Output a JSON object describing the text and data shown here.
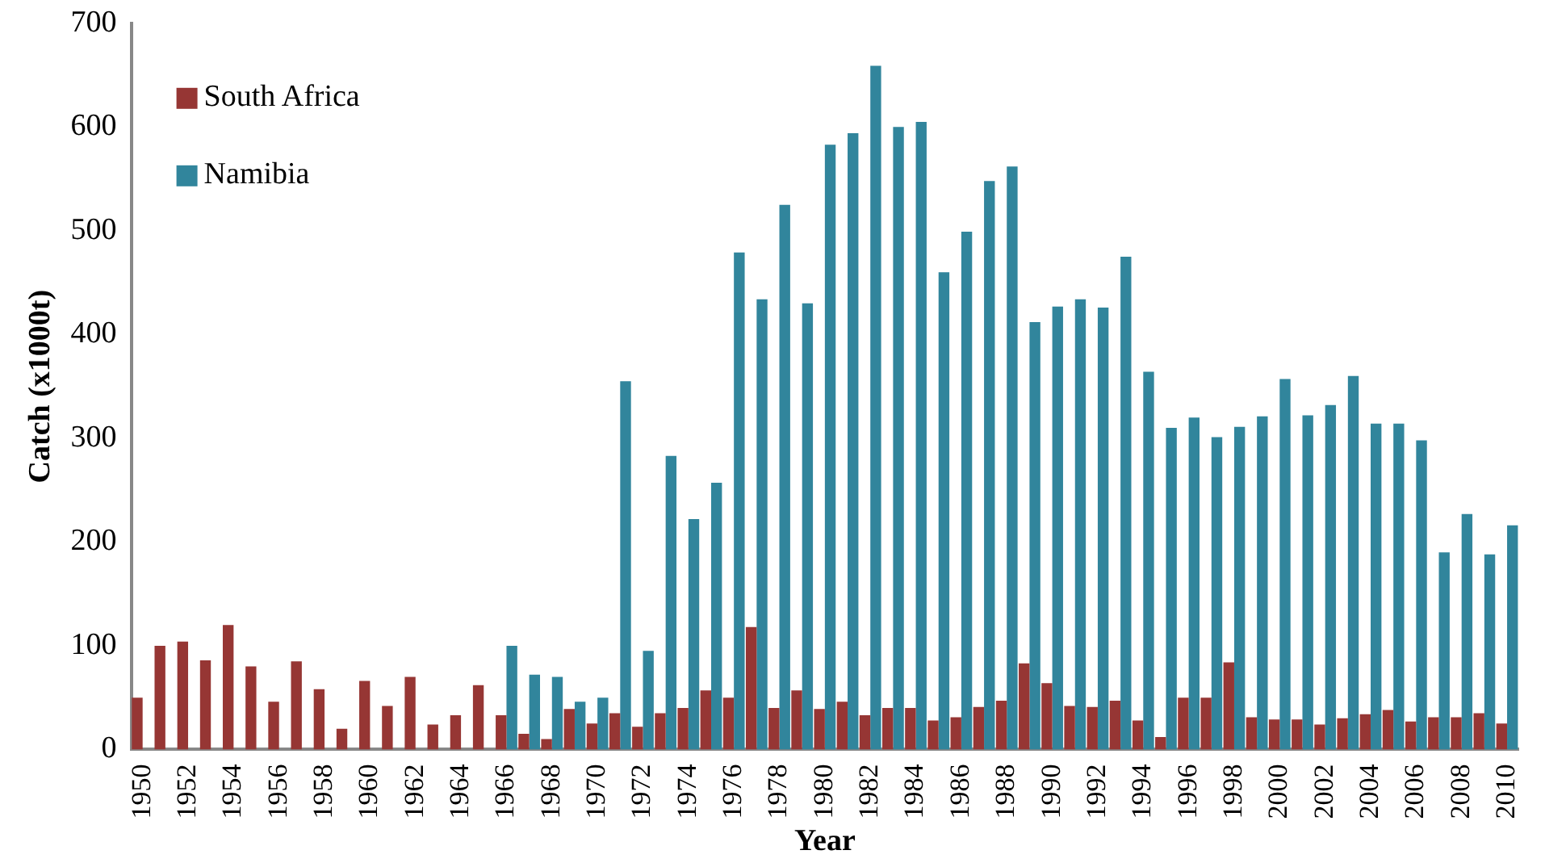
{
  "chart_data": {
    "type": "bar",
    "xlabel": "Year",
    "ylabel": "Catch (x1000t)",
    "categories": [
      "1950",
      null,
      "1952",
      null,
      "1954",
      null,
      "1956",
      null,
      "1958",
      null,
      "1960",
      null,
      "1962",
      null,
      "1964",
      null,
      "1966",
      null,
      "1968",
      null,
      "1970",
      null,
      "1972",
      null,
      "1974",
      null,
      "1976",
      null,
      "1978",
      null,
      "1980",
      null,
      "1982",
      null,
      "1984",
      null,
      "1986",
      null,
      "1988",
      null,
      "1990",
      null,
      "1992",
      null,
      "1994",
      null,
      "1996",
      null,
      "1998",
      null,
      "2000",
      null,
      "2002",
      null,
      "2004",
      null,
      "2006",
      null,
      "2008",
      null,
      "2010"
    ],
    "series": [
      {
        "name": "South Africa",
        "color": "#963634",
        "values": [
          50,
          100,
          104,
          86,
          120,
          80,
          46,
          85,
          58,
          20,
          66,
          42,
          70,
          24,
          33,
          62,
          33,
          15,
          10,
          39,
          25,
          35,
          22,
          35,
          40,
          57,
          50,
          118,
          40,
          57,
          39,
          46,
          33,
          40,
          40,
          28,
          31,
          41,
          47,
          83,
          64,
          42,
          41,
          47,
          28,
          12,
          50,
          50,
          84,
          31,
          29,
          29,
          24,
          30,
          34,
          38,
          27,
          31,
          31,
          35,
          25
        ]
      },
      {
        "name": "Namibia",
        "color": "#31859c",
        "values": [
          null,
          null,
          null,
          null,
          null,
          null,
          null,
          null,
          null,
          null,
          null,
          null,
          null,
          null,
          null,
          null,
          100,
          72,
          70,
          46,
          50,
          355,
          95,
          283,
          222,
          257,
          479,
          434,
          525,
          430,
          583,
          594,
          659,
          600,
          605,
          460,
          499,
          548,
          562,
          412,
          427,
          434,
          426,
          475,
          364,
          310,
          320,
          301,
          311,
          321,
          357,
          322,
          332,
          360,
          314,
          314,
          298,
          190,
          227,
          188,
          216
        ]
      }
    ],
    "ylim": [
      0,
      700
    ],
    "yticks": [
      0,
      100,
      200,
      300,
      400,
      500,
      600,
      700
    ],
    "grid": false,
    "legend": "top left"
  }
}
